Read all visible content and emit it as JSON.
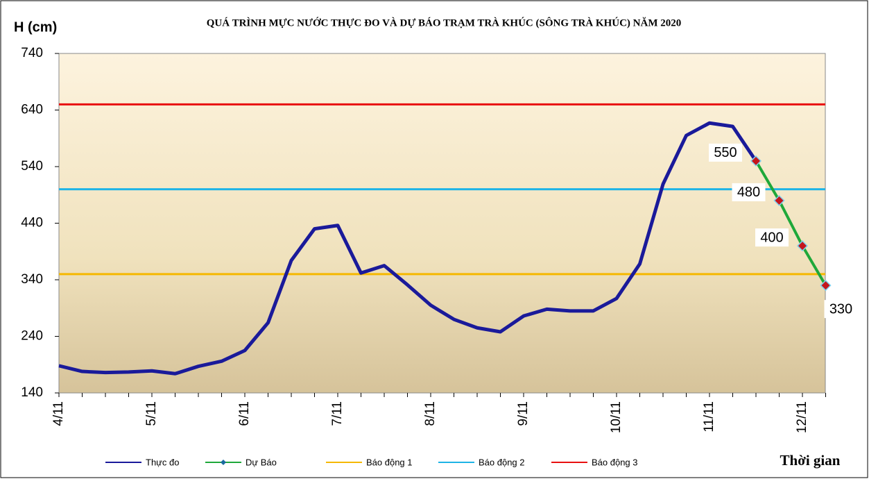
{
  "chart_data": {
    "type": "line",
    "title": "QUÁ TRÌNH MỰC NƯỚC THỰC ĐO VÀ DỰ BÁO TRẠM TRÀ KHÚC (SÔNG TRÀ KHÚC) NĂM 2020",
    "y_label": "H (cm)",
    "x_label": "Thời gian",
    "categories": [
      "4/11",
      null,
      null,
      null,
      "5/11",
      null,
      null,
      null,
      "6/11",
      null,
      null,
      null,
      "7/11",
      null,
      null,
      null,
      "8/11",
      null,
      null,
      null,
      "9/11",
      null,
      null,
      null,
      "10/11",
      null,
      null,
      null,
      "11/11",
      null,
      null,
      null,
      "12/11",
      null
    ],
    "series": [
      {
        "name": "Thực đo",
        "color": "#1a1a9a",
        "values": [
          188,
          178,
          176,
          177,
          179,
          174,
          187,
          196,
          215,
          264,
          374,
          430,
          436,
          352,
          365,
          331,
          295,
          270,
          255,
          248,
          276,
          288,
          285,
          285,
          307,
          368,
          509,
          595,
          617,
          611,
          550,
          null,
          null,
          null
        ]
      },
      {
        "name": "Dự Báo",
        "color": "#1fa83a",
        "values": [
          null,
          null,
          null,
          null,
          null,
          null,
          null,
          null,
          null,
          null,
          null,
          null,
          null,
          null,
          null,
          null,
          null,
          null,
          null,
          null,
          null,
          null,
          null,
          null,
          null,
          null,
          null,
          null,
          null,
          null,
          550,
          480,
          400,
          330
        ]
      }
    ],
    "alarms": [
      {
        "name": "Báo động 1",
        "color": "#f5b800",
        "value": 350
      },
      {
        "name": "Báo động 2",
        "color": "#1eb4e6",
        "value": 500
      },
      {
        "name": "Báo động 3",
        "color": "#e81010",
        "value": 650
      }
    ],
    "ylim": [
      140,
      740
    ],
    "yticks": [
      140,
      240,
      340,
      440,
      540,
      640,
      740
    ]
  }
}
